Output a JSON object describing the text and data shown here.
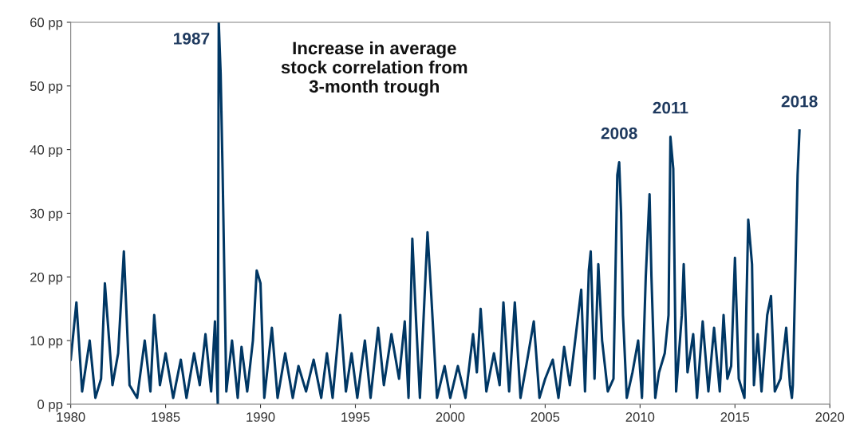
{
  "chart_data": {
    "type": "line",
    "title": "Increase in average\nstock correlation from\n3-month trough",
    "x": [
      1980.0,
      1980.3,
      1980.6,
      1981.0,
      1981.3,
      1981.6,
      1981.8,
      1982.2,
      1982.5,
      1982.8,
      1983.1,
      1983.5,
      1983.9,
      1984.2,
      1984.4,
      1984.7,
      1985.0,
      1985.4,
      1985.8,
      1986.1,
      1986.5,
      1986.8,
      1987.1,
      1987.4,
      1987.6,
      1987.75,
      1987.8,
      1987.9,
      1988.0,
      1988.2,
      1988.5,
      1988.8,
      1989.0,
      1989.3,
      1989.6,
      1989.8,
      1990.0,
      1990.2,
      1990.6,
      1990.9,
      1991.3,
      1991.7,
      1992.0,
      1992.4,
      1992.8,
      1993.2,
      1993.5,
      1993.8,
      1994.2,
      1994.5,
      1994.8,
      1995.1,
      1995.5,
      1995.8,
      1996.2,
      1996.5,
      1996.9,
      1997.3,
      1997.6,
      1997.8,
      1998.0,
      1998.2,
      1998.4,
      1998.8,
      1999.0,
      1999.3,
      1999.7,
      2000.0,
      2000.4,
      2000.8,
      2001.2,
      2001.4,
      2001.6,
      2001.9,
      2002.3,
      2002.6,
      2002.8,
      2003.1,
      2003.4,
      2003.7,
      2004.0,
      2004.4,
      2004.7,
      2005.0,
      2005.4,
      2005.7,
      2006.0,
      2006.3,
      2006.9,
      2007.1,
      2007.3,
      2007.4,
      2007.6,
      2007.8,
      2008.0,
      2008.3,
      2008.6,
      2008.8,
      2008.9,
      2009.0,
      2009.1,
      2009.3,
      2009.6,
      2009.9,
      2010.1,
      2010.3,
      2010.5,
      2010.6,
      2010.8,
      2011.0,
      2011.3,
      2011.5,
      2011.6,
      2011.75,
      2011.9,
      2012.2,
      2012.3,
      2012.5,
      2012.8,
      2013.0,
      2013.3,
      2013.6,
      2013.9,
      2014.2,
      2014.4,
      2014.6,
      2014.8,
      2015.0,
      2015.2,
      2015.5,
      2015.7,
      2015.9,
      2016.0,
      2016.2,
      2016.4,
      2016.7,
      2016.9,
      2017.1,
      2017.4,
      2017.7,
      2017.9,
      2018.0,
      2018.05,
      2018.2,
      2018.3,
      2018.4
    ],
    "series": [
      {
        "color": "#003764",
        "values": [
          7,
          16,
          2,
          10,
          1,
          4,
          19,
          3,
          8,
          24,
          3,
          1,
          10,
          2,
          14,
          3,
          8,
          1,
          7,
          1,
          8,
          3,
          11,
          2,
          13,
          0,
          60,
          52,
          37,
          2,
          10,
          1,
          9,
          2,
          10,
          21,
          19,
          1,
          12,
          1,
          8,
          1,
          6,
          2,
          7,
          1,
          8,
          1,
          14,
          2,
          8,
          1,
          10,
          1,
          12,
          3,
          11,
          4,
          13,
          1,
          26,
          13,
          1,
          27,
          17,
          1,
          6,
          1,
          6,
          1,
          11,
          5,
          15,
          2,
          8,
          3,
          16,
          2,
          16,
          1,
          6,
          13,
          1,
          4,
          7,
          1,
          9,
          3,
          18,
          2,
          21,
          24,
          4,
          22,
          10,
          2,
          4,
          36,
          38,
          30,
          14,
          1,
          5,
          10,
          1,
          20,
          33,
          20,
          1,
          5,
          8,
          14,
          42,
          37,
          2,
          14,
          22,
          5,
          11,
          1,
          13,
          2,
          12,
          2,
          14,
          4,
          6,
          23,
          4,
          1,
          29,
          22,
          3,
          11,
          2,
          14,
          17,
          2,
          4,
          12,
          3,
          1,
          3,
          23,
          36,
          43
        ]
      }
    ],
    "xlim": [
      1980,
      2020
    ],
    "xticks": [
      1980,
      1985,
      1990,
      1995,
      2000,
      2005,
      2010,
      2015,
      2020
    ],
    "ylim": [
      0,
      60
    ],
    "yticks": [
      {
        "value": 0,
        "label": "0 pp"
      },
      {
        "value": 10,
        "label": "10 pp"
      },
      {
        "value": 20,
        "label": "20 pp"
      },
      {
        "value": 30,
        "label": "30 pp"
      },
      {
        "value": 40,
        "label": "40 pp"
      },
      {
        "value": 50,
        "label": "50 pp"
      },
      {
        "value": 60,
        "label": "60 pp"
      }
    ],
    "annotations": [
      {
        "text": "1987",
        "x": 1987.8,
        "y": 60
      },
      {
        "text": "2008",
        "x": 2008.9,
        "y": 38
      },
      {
        "text": "2011",
        "x": 2011.6,
        "y": 42
      },
      {
        "text": "2018",
        "x": 2018.4,
        "y": 43
      }
    ],
    "grid": false,
    "legend": false,
    "marker": "none",
    "line_style": "solid"
  }
}
